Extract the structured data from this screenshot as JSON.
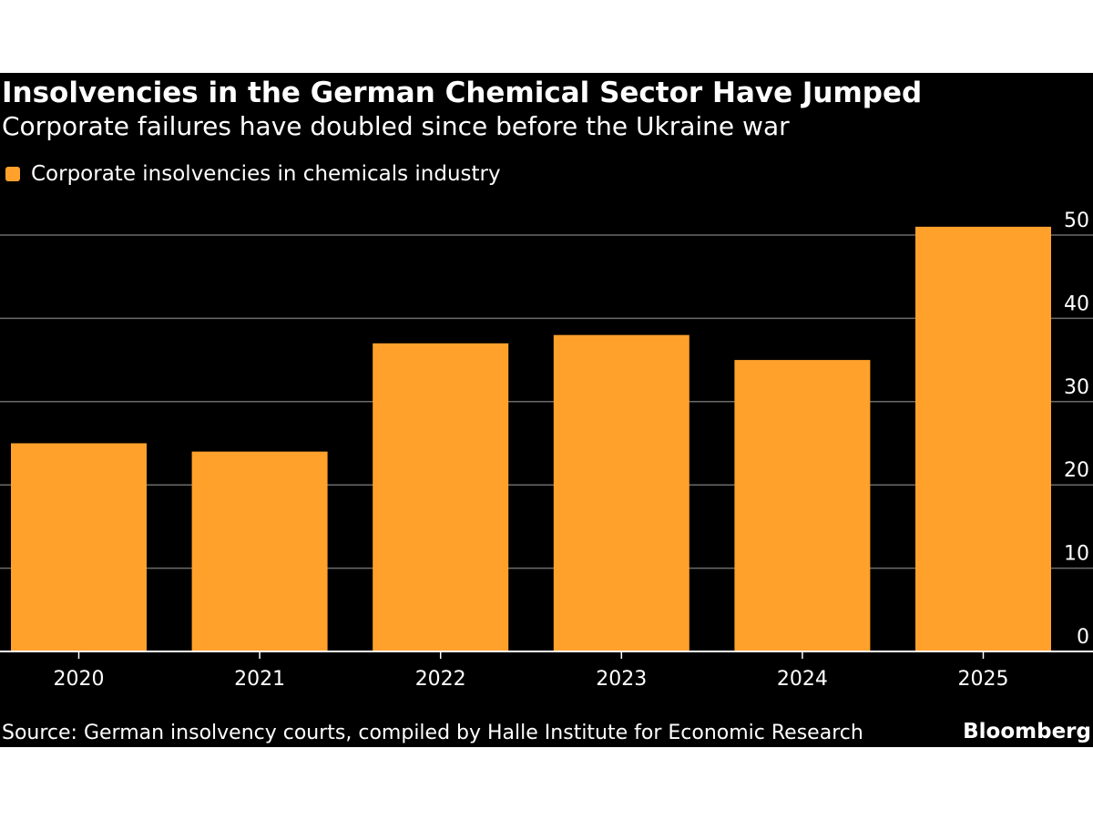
{
  "header": {
    "title": "Insolvencies in the German Chemical Sector Have Jumped",
    "subtitle": "Corporate failures have doubled since before the Ukraine war"
  },
  "footer": {
    "source": "Source: German insolvency courts, compiled by Halle Institute for Economic Research",
    "brand": "Bloomberg"
  },
  "chart_data": {
    "type": "bar",
    "title": "Insolvencies in the German Chemical Sector Have Jumped",
    "subtitle": "Corporate failures have doubled since before the Ukraine war",
    "categories": [
      "2020",
      "2021",
      "2022",
      "2023",
      "2024",
      "2025"
    ],
    "series": [
      {
        "name": "Corporate insolvencies in chemicals industry",
        "values": [
          25,
          24,
          37,
          38,
          35,
          51
        ],
        "color": "#FFA12B"
      }
    ],
    "yticks": [
      0,
      10,
      20,
      30,
      40,
      50
    ],
    "ylim": [
      0,
      52
    ],
    "y_axis_side": "right",
    "grid": true,
    "legend": "top-left",
    "background": "#000000"
  }
}
